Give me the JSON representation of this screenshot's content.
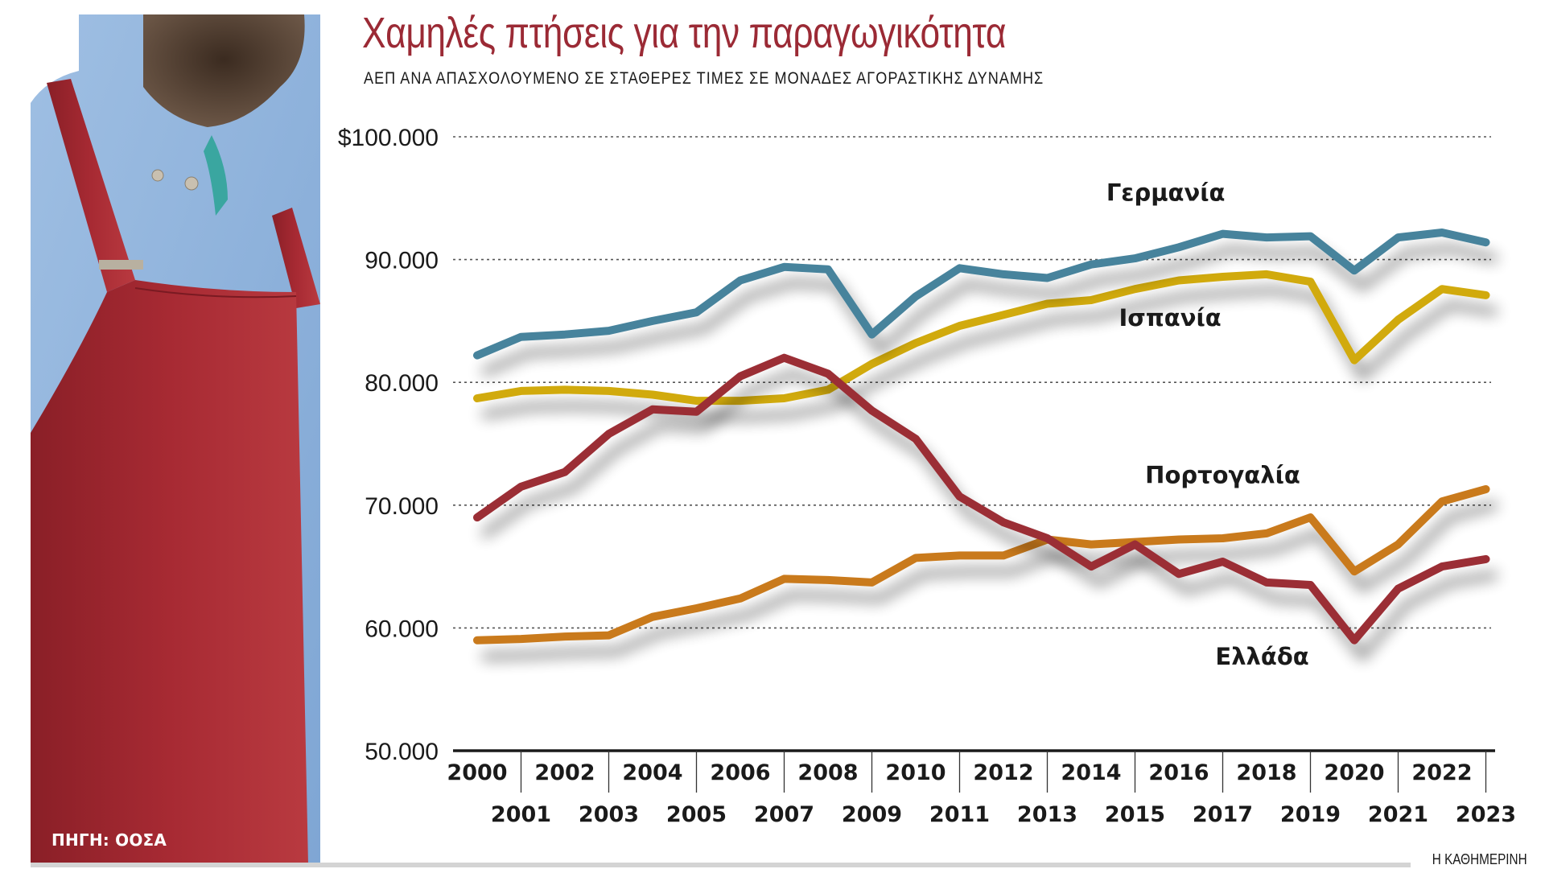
{
  "header": {
    "title": "Χαμηλές πτήσεις για την παραγωγικότητα",
    "subtitle": "ΑΕΠ ΑΝΑ ΑΠΑΣΧΟΛΟΥΜΕΝΟ ΣΕ ΣΤΑΘΕΡΕΣ ΤΙΜΕΣ ΣΕ ΜΟΝΑΔΕΣ ΑΓΟΡΑΣΤΙΚΗΣ ΔΥΝΑΜΗΣ"
  },
  "footer": {
    "source": "ΠΗΓΗ: ΟΟΣΑ",
    "brand": "Η ΚΑΘΗΜΕΡΙΝΗ"
  },
  "colors": {
    "title": "#9b2a35",
    "germany": "#47839c",
    "spain": "#d1aa0f",
    "portugal": "#c97a1c",
    "greece": "#9b2d35"
  },
  "chart_data": {
    "type": "line",
    "title": "Χαμηλές πτήσεις για την παραγωγικότητα",
    "subtitle": "ΑΕΠ ΑΝΑ ΑΠΑΣΧΟΛΟΥΜΕΝΟ ΣΕ ΣΤΑΘΕΡΕΣ ΤΙΜΕΣ ΣΕ ΜΟΝΑΔΕΣ ΑΓΟΡΑΣΤΙΚΗΣ ΔΥΝΑΜΗΣ",
    "xlabel": "",
    "ylabel": "",
    "ylim": [
      50000,
      100000
    ],
    "grid": true,
    "y_ticks": [
      {
        "value": 100000,
        "label": "$100.000"
      },
      {
        "value": 90000,
        "label": "90.000"
      },
      {
        "value": 80000,
        "label": "80.000"
      },
      {
        "value": 70000,
        "label": "70.000"
      },
      {
        "value": 60000,
        "label": "60.000"
      },
      {
        "value": 50000,
        "label": "50.000"
      }
    ],
    "x": [
      "2000",
      "2001",
      "2002",
      "2003",
      "2004",
      "2005",
      "2006",
      "2007",
      "2008",
      "2009",
      "2010",
      "2011",
      "2012",
      "2013",
      "2014",
      "2015",
      "2016",
      "2017",
      "2018",
      "2019",
      "2020",
      "2021",
      "2022",
      "2023"
    ],
    "series": [
      {
        "name": "Γερμανία",
        "key": "germany",
        "label_year": 2015.7,
        "label_value": 94800,
        "values": [
          82200,
          83700,
          83900,
          84200,
          85000,
          85700,
          88300,
          89400,
          89200,
          83900,
          87000,
          89300,
          88800,
          88500,
          89600,
          90100,
          91000,
          92100,
          91800,
          91900,
          89100,
          91800,
          92200,
          91400
        ]
      },
      {
        "name": "Ισπανία",
        "key": "spain",
        "label_year": 2015.8,
        "label_value": 84600,
        "values": [
          78700,
          79300,
          79400,
          79300,
          79000,
          78500,
          78500,
          78700,
          79400,
          81500,
          83200,
          84600,
          85500,
          86400,
          86700,
          87600,
          88300,
          88600,
          88800,
          88200,
          81800,
          85100,
          87600,
          87100
        ]
      },
      {
        "name": "Πορτογαλία",
        "key": "portugal",
        "label_year": 2017.0,
        "label_value": 71800,
        "values": [
          59000,
          59100,
          59300,
          59400,
          60900,
          61600,
          62400,
          64000,
          63900,
          63700,
          65700,
          65900,
          65900,
          67200,
          66800,
          67000,
          67200,
          67300,
          67700,
          69000,
          64600,
          66800,
          70300,
          71300
        ]
      },
      {
        "name": "Ελλάδα",
        "key": "greece",
        "label_year": 2017.9,
        "label_value": 57000,
        "values": [
          69000,
          71500,
          72700,
          75800,
          77800,
          77600,
          80500,
          82000,
          80700,
          77700,
          75400,
          70700,
          68600,
          67300,
          65000,
          66800,
          64400,
          65400,
          63700,
          63500,
          59000,
          63200,
          65000,
          65600
        ]
      }
    ]
  }
}
